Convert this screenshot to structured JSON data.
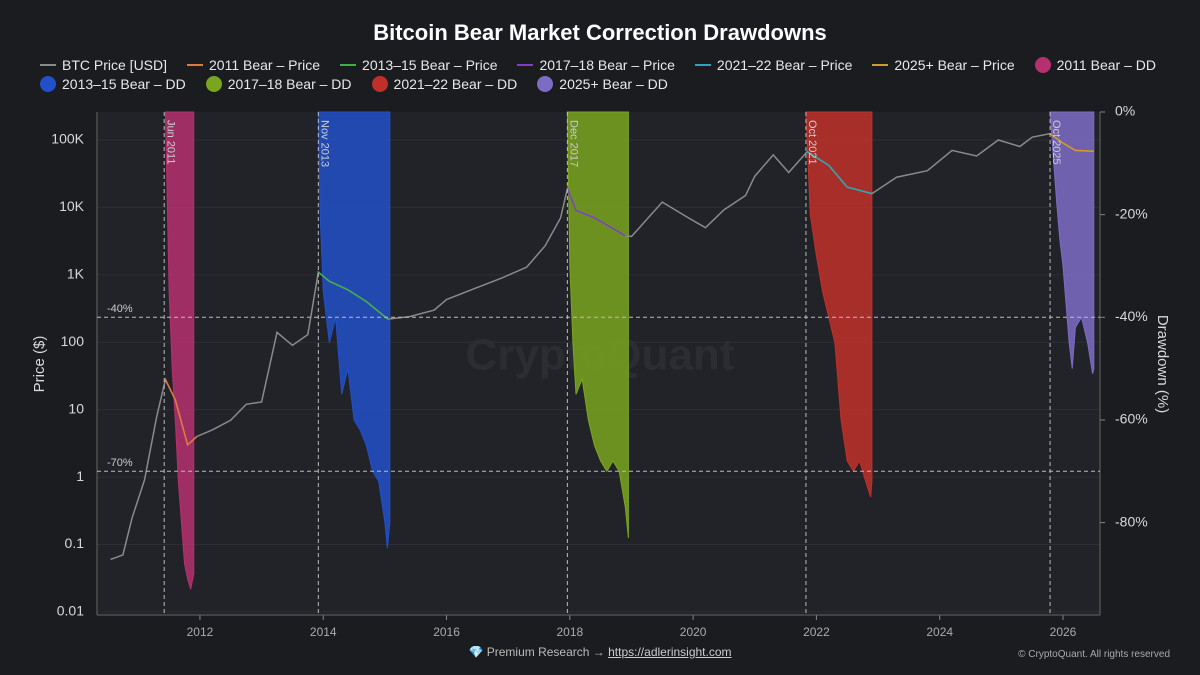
{
  "chart_data": {
    "type": "line",
    "title": "Bitcoin Bear Market Correction Drawdowns",
    "y_label": "Price ($)",
    "y2_label": "Drawdown (%)",
    "watermark": "CryptoQuant",
    "log_y": true,
    "grid": true,
    "xlim": [
      2010.33,
      2026.6
    ],
    "xticks": [
      2012,
      2014,
      2016,
      2018,
      2020,
      2022,
      2024,
      2026
    ],
    "ylim": [
      0.009,
      260000
    ],
    "yticks": [
      0.01,
      0.1,
      1,
      10,
      100,
      {
        "value": 1000,
        "label": "1K"
      },
      {
        "value": 10000,
        "label": "10K"
      },
      {
        "value": 100000,
        "label": "100K"
      }
    ],
    "y2lim": [
      -98,
      0
    ],
    "y2ticks": [
      {
        "value": 0,
        "label": "0%"
      },
      {
        "value": -20,
        "label": "-20%"
      },
      {
        "value": -40,
        "label": "-40%"
      },
      {
        "value": -60,
        "label": "-60%"
      },
      {
        "value": -80,
        "label": "-80%"
      }
    ],
    "markers": [
      {
        "x": 2011.42,
        "label": "Jun 2011"
      },
      {
        "x": 2013.92,
        "label": "Nov 2013"
      },
      {
        "x": 2017.96,
        "label": "Dec 2017"
      },
      {
        "x": 2021.83,
        "label": "Oct 2021"
      },
      {
        "x": 2025.79,
        "label": "Oct 2025"
      }
    ],
    "hlines": [
      {
        "value": -40,
        "label": "-40%"
      },
      {
        "value": -70,
        "label": "-70%"
      }
    ],
    "series": [
      {
        "name": "BTC Price [USD]",
        "color": "#8a8a8a",
        "x": [
          2010.55,
          2010.75,
          2010.9,
          2011.1,
          2011.3,
          2011.44,
          2011.6,
          2011.8,
          2011.95,
          2012.2,
          2012.5,
          2012.75,
          2013.0,
          2013.25,
          2013.5,
          2013.75,
          2013.92,
          2014.1,
          2014.4,
          2014.7,
          2015.05,
          2015.4,
          2015.8,
          2016.0,
          2016.5,
          2016.9,
          2017.3,
          2017.6,
          2017.85,
          2017.96,
          2018.1,
          2018.4,
          2018.9,
          2019.0,
          2019.5,
          2019.9,
          2020.2,
          2020.5,
          2020.85,
          2021.0,
          2021.3,
          2021.55,
          2021.85,
          2022.2,
          2022.5,
          2022.9,
          2023.3,
          2023.8,
          2024.2,
          2024.6,
          2024.95,
          2025.3,
          2025.5,
          2025.79,
          2026.0,
          2026.2,
          2026.5
        ],
        "values": [
          0.06,
          0.07,
          0.25,
          0.9,
          8,
          28,
          14,
          3,
          4,
          5,
          7,
          12,
          13,
          140,
          90,
          130,
          1100,
          800,
          600,
          400,
          220,
          240,
          300,
          430,
          650,
          900,
          1300,
          2700,
          7000,
          19000,
          9000,
          7000,
          3800,
          3700,
          12000,
          7200,
          5000,
          9200,
          15000,
          29000,
          60000,
          33000,
          67000,
          42000,
          20000,
          16000,
          28000,
          35000,
          70000,
          58000,
          100000,
          80000,
          110000,
          124000,
          90000,
          70000,
          68000
        ]
      },
      {
        "name": "2011 Bear – Price",
        "color": "#e07a3a",
        "x": [
          2011.44,
          2011.6,
          2011.8,
          2011.95
        ],
        "values": [
          28,
          14,
          3,
          4
        ]
      },
      {
        "name": "2013–15 Bear – Price",
        "color": "#3fae49",
        "x": [
          2013.92,
          2014.1,
          2014.4,
          2014.7,
          2015.05
        ],
        "values": [
          1100,
          800,
          600,
          400,
          220
        ]
      },
      {
        "name": "2017–18 Bear – Price",
        "color": "#7b3fc9",
        "x": [
          2017.96,
          2018.1,
          2018.4,
          2018.9
        ],
        "values": [
          19000,
          9000,
          7000,
          3800
        ]
      },
      {
        "name": "2021–22 Bear – Price",
        "color": "#2aa7b0",
        "x": [
          2021.85,
          2022.2,
          2022.5,
          2022.9
        ],
        "values": [
          67000,
          42000,
          20000,
          16000
        ]
      },
      {
        "name": "2025+ Bear – Price",
        "color": "#d49a2a",
        "x": [
          2025.79,
          2026.0,
          2026.2,
          2026.5
        ],
        "values": [
          124000,
          90000,
          70000,
          68000
        ]
      },
      {
        "name": "2011 Bear – DD",
        "color": "#b5306e",
        "axis": "y2",
        "x": [
          2011.44,
          2011.5,
          2011.55,
          2011.6,
          2011.65,
          2011.7,
          2011.75,
          2011.8,
          2011.85,
          2011.9
        ],
        "values": [
          0,
          -35,
          -50,
          -60,
          -72,
          -80,
          -88,
          -91,
          -93,
          -90
        ]
      },
      {
        "name": "2013–15 Bear – DD",
        "color": "#2250c8",
        "axis": "y2",
        "x": [
          2013.92,
          2013.95,
          2014.0,
          2014.1,
          2014.2,
          2014.3,
          2014.4,
          2014.5,
          2014.6,
          2014.7,
          2014.8,
          2014.9,
          2015.0,
          2015.04,
          2015.08
        ],
        "values": [
          0,
          -20,
          -35,
          -45,
          -40,
          -55,
          -50,
          -60,
          -62,
          -65,
          -70,
          -72,
          -80,
          -85,
          -80
        ]
      },
      {
        "name": "2017–18 Bear – DD",
        "color": "#7aa51e",
        "axis": "y2",
        "x": [
          2017.96,
          2018.0,
          2018.05,
          2018.1,
          2018.2,
          2018.3,
          2018.4,
          2018.5,
          2018.6,
          2018.7,
          2018.8,
          2018.9,
          2018.95
        ],
        "values": [
          0,
          -30,
          -45,
          -55,
          -52,
          -60,
          -65,
          -68,
          -70,
          -68,
          -70,
          -77,
          -83
        ]
      },
      {
        "name": "2021–22 Bear – DD",
        "color": "#c0302a",
        "axis": "y2",
        "x": [
          2021.83,
          2021.9,
          2022.0,
          2022.1,
          2022.2,
          2022.3,
          2022.4,
          2022.5,
          2022.6,
          2022.7,
          2022.8,
          2022.88,
          2022.9
        ],
        "values": [
          0,
          -20,
          -28,
          -35,
          -40,
          -45,
          -60,
          -68,
          -70,
          -68,
          -72,
          -75,
          -72
        ]
      },
      {
        "name": "2025+ Bear – DD",
        "color": "#7d6cc4",
        "axis": "y2",
        "x": [
          2025.79,
          2025.85,
          2025.9,
          2025.95,
          2026.0,
          2026.1,
          2026.15,
          2026.2,
          2026.3,
          2026.4,
          2026.48,
          2026.5
        ],
        "values": [
          0,
          -10,
          -18,
          -25,
          -30,
          -45,
          -50,
          -42,
          -40,
          -45,
          -51,
          -50
        ]
      }
    ]
  },
  "footer": {
    "prefix": "💎 Premium Research →",
    "link": "https://adlerinsight.com",
    "copyright": "© CryptoQuant. All rights reserved"
  }
}
